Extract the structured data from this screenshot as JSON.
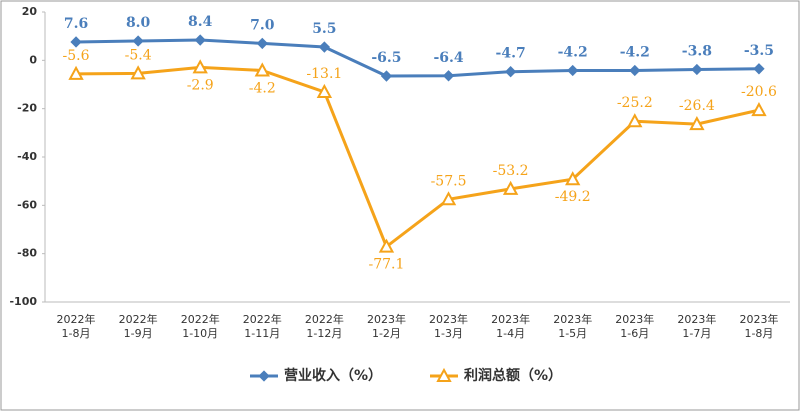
{
  "chart_data": {
    "type": "line",
    "categories": [
      "2022年\n1-8月",
      "2022年\n1-9月",
      "2022年\n1-10月",
      "2022年\n1-11月",
      "2022年\n1-12月",
      "2023年\n1-2月",
      "2023年\n1-3月",
      "2023年\n1-4月",
      "2023年\n1-5月",
      "2023年\n1-6月",
      "2023年\n1-7月",
      "2023年\n1-8月"
    ],
    "series": [
      {
        "name": "营业收入（%）",
        "color": "#4a7ebb",
        "values": [
          7.6,
          8.0,
          8.4,
          7.0,
          5.5,
          -6.5,
          -6.4,
          -4.7,
          -4.2,
          -4.2,
          -3.8,
          -3.5
        ],
        "value_labels": [
          "7.6",
          "8.0",
          "8.4",
          "7.0",
          "5.5",
          "-6.5",
          "-6.4",
          "-4.7",
          "-4.2",
          "-4.2",
          "-3.8",
          "-3.5"
        ]
      },
      {
        "name": "利润总额（%）",
        "color": "#f5a31a",
        "values": [
          -5.6,
          -5.4,
          -2.9,
          -4.2,
          -13.1,
          -77.1,
          -57.5,
          -53.2,
          -49.2,
          -25.2,
          -26.4,
          -20.6
        ],
        "value_labels": [
          "-5.6",
          "-5.4",
          "-2.9",
          "-4.2",
          "-13.1",
          "-77.1",
          "-57.5",
          "-53.2",
          "-49.2",
          "-25.2",
          "-26.4",
          "-20.6"
        ]
      }
    ],
    "ylim": [
      -100,
      20
    ],
    "yticks": [
      -100,
      -80,
      -60,
      -40,
      -20,
      0,
      20
    ]
  }
}
